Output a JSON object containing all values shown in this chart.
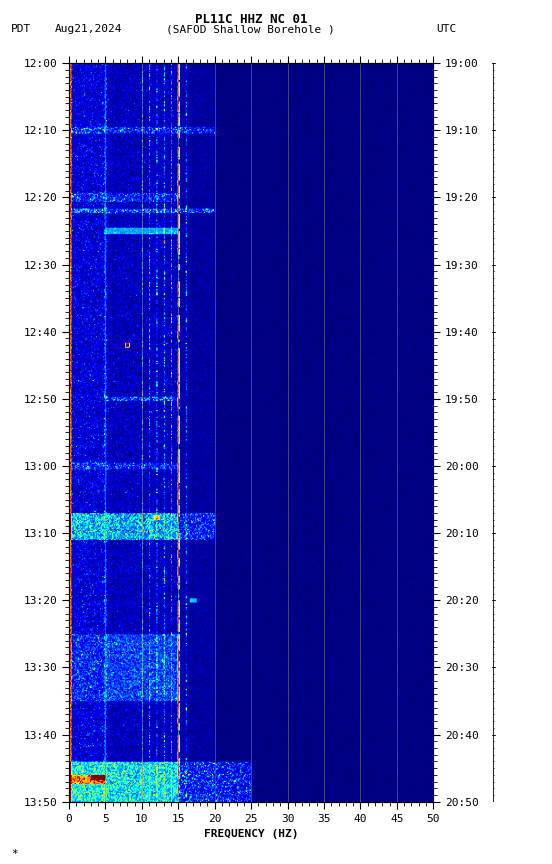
{
  "title_line1": "PL11C HHZ NC 01",
  "title_line2_left": "PDT   Aug21,2024      (SAFOD Shallow Borehole )",
  "title_line2_right": "UTC",
  "xlabel": "FREQUENCY (HZ)",
  "freq_min": 0,
  "freq_max": 50,
  "yticks_pdt": [
    "12:00",
    "12:10",
    "12:20",
    "12:30",
    "12:40",
    "12:50",
    "13:00",
    "13:10",
    "13:20",
    "13:30",
    "13:40",
    "13:50"
  ],
  "yticks_utc": [
    "19:00",
    "19:10",
    "19:20",
    "19:30",
    "19:40",
    "19:50",
    "20:00",
    "20:10",
    "20:20",
    "20:30",
    "20:40",
    "20:50"
  ],
  "xticks": [
    0,
    5,
    10,
    15,
    20,
    25,
    30,
    35,
    40,
    45,
    50
  ],
  "colormap": "jet",
  "fig_width": 5.52,
  "fig_height": 8.64,
  "dpi": 100,
  "n_time": 660,
  "n_freq": 500,
  "noise_seed": 42,
  "vertical_lines_x": [
    5,
    10,
    15,
    20,
    25,
    30,
    35,
    40,
    45
  ],
  "vline_color": "#888888",
  "vline_alpha": 0.6,
  "font_size_title": 9,
  "font_size_labels": 8,
  "font_size_ticks": 8,
  "font_family": "monospace"
}
